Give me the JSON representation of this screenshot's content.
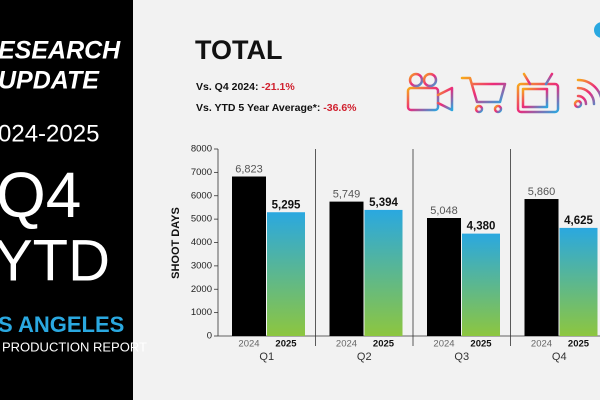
{
  "sidebar": {
    "lines": [
      "ESEARCH",
      "UPDATE",
      "024-2025",
      "Q4",
      "YTD"
    ],
    "city": "S ANGELES",
    "report": "PRODUCTION REPORT"
  },
  "chart_data": {
    "type": "bar",
    "title": "TOTAL",
    "annotations": [
      {
        "label": "Vs. Q4 2024:",
        "value": "-21.1%"
      },
      {
        "label": "Vs. YTD 5 Year Average*:",
        "value": "-36.6%"
      }
    ],
    "y_label": "SHOOT DAYS",
    "categories": [
      "Q1",
      "Q2",
      "Q3",
      "Q4"
    ],
    "series": [
      {
        "name": "2024",
        "color": "#000000",
        "values": [
          6823,
          5749,
          5048,
          5860
        ],
        "value_labels": [
          "6,823",
          "5,749",
          "5,048",
          "5,860"
        ]
      },
      {
        "name": "2025",
        "color": "#2aa8e0",
        "gradient_end": "#8dc63f",
        "values": [
          5295,
          5394,
          4380,
          4625
        ],
        "value_labels": [
          "5,295",
          "5,394",
          "4,380",
          "4,625"
        ]
      }
    ],
    "ylim": [
      0,
      8000
    ],
    "yticks": [
      0,
      1000,
      2000,
      3000,
      4000,
      5000,
      6000,
      7000,
      8000
    ]
  }
}
